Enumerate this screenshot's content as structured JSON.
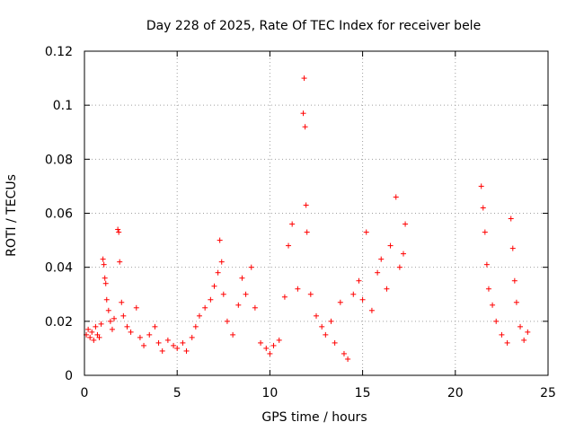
{
  "chart_data": {
    "type": "scatter",
    "title": "Day 228 of 2025, Rate Of TEC Index for receiver bele",
    "xlabel": "GPS time / hours",
    "ylabel": "ROTI / TECUs",
    "xlim": [
      0,
      25
    ],
    "ylim": [
      0,
      0.12
    ],
    "xticks": [
      "0",
      "5",
      "10",
      "15",
      "20",
      "25"
    ],
    "yticks": [
      "0",
      "0.02",
      "0.04",
      "0.06",
      "0.08",
      "0.1",
      "0.12"
    ],
    "grid": true,
    "marker": "+",
    "series": [
      {
        "color": "#ff0000",
        "points": [
          [
            0.1,
            0.015
          ],
          [
            0.2,
            0.017
          ],
          [
            0.3,
            0.014
          ],
          [
            0.4,
            0.016
          ],
          [
            0.5,
            0.013
          ],
          [
            0.6,
            0.018
          ],
          [
            0.7,
            0.015
          ],
          [
            0.8,
            0.014
          ],
          [
            0.9,
            0.019
          ],
          [
            1.0,
            0.043
          ],
          [
            1.05,
            0.041
          ],
          [
            1.1,
            0.036
          ],
          [
            1.15,
            0.034
          ],
          [
            1.2,
            0.028
          ],
          [
            1.3,
            0.024
          ],
          [
            1.4,
            0.02
          ],
          [
            1.5,
            0.017
          ],
          [
            1.6,
            0.021
          ],
          [
            1.8,
            0.054
          ],
          [
            1.85,
            0.053
          ],
          [
            1.9,
            0.042
          ],
          [
            2.0,
            0.027
          ],
          [
            2.1,
            0.022
          ],
          [
            2.3,
            0.018
          ],
          [
            2.5,
            0.016
          ],
          [
            2.8,
            0.025
          ],
          [
            3.0,
            0.014
          ],
          [
            3.2,
            0.011
          ],
          [
            3.5,
            0.015
          ],
          [
            3.8,
            0.018
          ],
          [
            4.0,
            0.012
          ],
          [
            4.2,
            0.009
          ],
          [
            4.5,
            0.013
          ],
          [
            4.8,
            0.011
          ],
          [
            5.0,
            0.01
          ],
          [
            5.3,
            0.012
          ],
          [
            5.5,
            0.009
          ],
          [
            5.8,
            0.014
          ],
          [
            6.0,
            0.018
          ],
          [
            6.2,
            0.022
          ],
          [
            6.5,
            0.025
          ],
          [
            6.8,
            0.028
          ],
          [
            7.0,
            0.033
          ],
          [
            7.2,
            0.038
          ],
          [
            7.3,
            0.05
          ],
          [
            7.4,
            0.042
          ],
          [
            7.5,
            0.03
          ],
          [
            7.7,
            0.02
          ],
          [
            8.0,
            0.015
          ],
          [
            8.3,
            0.026
          ],
          [
            8.5,
            0.036
          ],
          [
            8.7,
            0.03
          ],
          [
            9.0,
            0.04
          ],
          [
            9.2,
            0.025
          ],
          [
            9.5,
            0.012
          ],
          [
            9.8,
            0.01
          ],
          [
            10.0,
            0.008
          ],
          [
            10.2,
            0.011
          ],
          [
            10.5,
            0.013
          ],
          [
            10.8,
            0.029
          ],
          [
            11.0,
            0.048
          ],
          [
            11.2,
            0.056
          ],
          [
            11.5,
            0.032
          ],
          [
            11.8,
            0.097
          ],
          [
            11.85,
            0.11
          ],
          [
            11.9,
            0.092
          ],
          [
            11.95,
            0.063
          ],
          [
            12.0,
            0.053
          ],
          [
            12.2,
            0.03
          ],
          [
            12.5,
            0.022
          ],
          [
            12.8,
            0.018
          ],
          [
            13.0,
            0.015
          ],
          [
            13.3,
            0.02
          ],
          [
            13.5,
            0.012
          ],
          [
            13.8,
            0.027
          ],
          [
            14.0,
            0.008
          ],
          [
            14.2,
            0.006
          ],
          [
            14.5,
            0.03
          ],
          [
            14.8,
            0.035
          ],
          [
            15.0,
            0.028
          ],
          [
            15.2,
            0.053
          ],
          [
            15.5,
            0.024
          ],
          [
            15.8,
            0.038
          ],
          [
            16.0,
            0.043
          ],
          [
            16.3,
            0.032
          ],
          [
            16.5,
            0.048
          ],
          [
            16.8,
            0.066
          ],
          [
            17.0,
            0.04
          ],
          [
            17.2,
            0.045
          ],
          [
            17.3,
            0.056
          ],
          [
            21.4,
            0.07
          ],
          [
            21.5,
            0.062
          ],
          [
            21.6,
            0.053
          ],
          [
            21.7,
            0.041
          ],
          [
            21.8,
            0.032
          ],
          [
            22.0,
            0.026
          ],
          [
            22.2,
            0.02
          ],
          [
            22.5,
            0.015
          ],
          [
            22.8,
            0.012
          ],
          [
            23.0,
            0.058
          ],
          [
            23.1,
            0.047
          ],
          [
            23.2,
            0.035
          ],
          [
            23.3,
            0.027
          ],
          [
            23.5,
            0.018
          ],
          [
            23.7,
            0.013
          ],
          [
            23.9,
            0.016
          ]
        ]
      }
    ]
  }
}
